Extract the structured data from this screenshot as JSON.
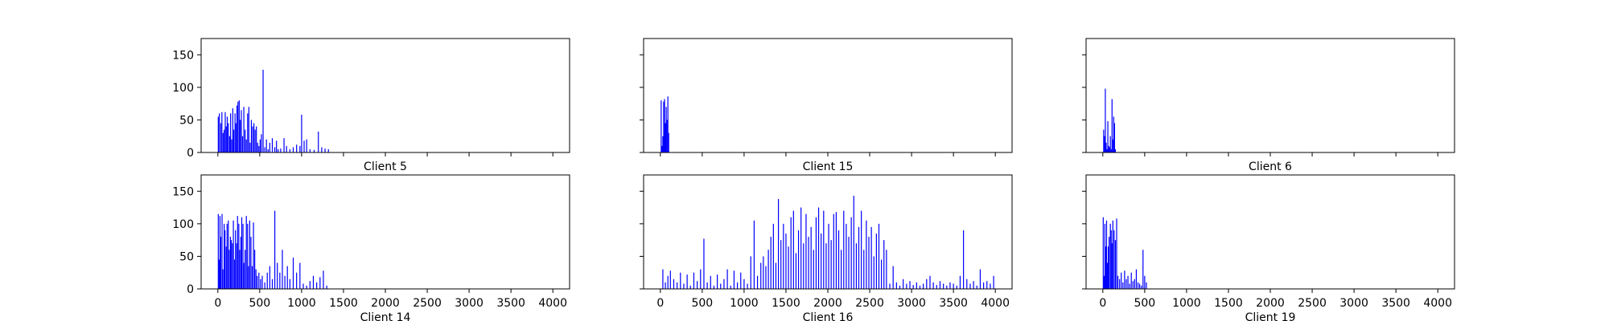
{
  "figure": {
    "background": "#ffffff",
    "bar_color": "#0000ff",
    "axis_color": "#000000"
  },
  "chart_data": [
    {
      "type": "bar",
      "title": "Client 5",
      "xlim": [
        -200,
        4200
      ],
      "ylim": [
        0,
        175
      ],
      "xticks": [
        0,
        500,
        1000,
        1500,
        2000,
        2500,
        3000,
        3500,
        4000
      ],
      "yticks": [
        0,
        50,
        100,
        150
      ],
      "xtick_labels_shown": false,
      "ytick_labels_shown": true,
      "x": [
        5,
        18,
        35,
        48,
        62,
        75,
        88,
        100,
        112,
        125,
        140,
        152,
        165,
        178,
        190,
        205,
        215,
        228,
        240,
        255,
        268,
        280,
        295,
        310,
        325,
        340,
        355,
        370,
        385,
        400,
        415,
        430,
        445,
        460,
        475,
        490,
        505,
        520,
        540,
        560,
        580,
        600,
        620,
        650,
        680,
        700,
        720,
        750,
        790,
        820,
        860,
        900,
        940,
        980,
        1000,
        1030,
        1060,
        1100,
        1150,
        1200,
        1240,
        1280,
        1320
      ],
      "values": [
        55,
        60,
        45,
        62,
        30,
        35,
        62,
        40,
        55,
        45,
        25,
        60,
        20,
        68,
        35,
        60,
        45,
        72,
        78,
        80,
        50,
        65,
        25,
        70,
        35,
        20,
        60,
        70,
        15,
        50,
        40,
        45,
        35,
        40,
        15,
        10,
        20,
        28,
        127,
        8,
        20,
        5,
        15,
        22,
        8,
        18,
        5,
        6,
        22,
        10,
        5,
        8,
        12,
        10,
        58,
        18,
        20,
        5,
        4,
        32,
        8,
        6,
        5
      ]
    },
    {
      "type": "bar",
      "title": "Client 15",
      "xlim": [
        -200,
        4200
      ],
      "ylim": [
        0,
        175
      ],
      "xticks": [
        0,
        500,
        1000,
        1500,
        2000,
        2500,
        3000,
        3500,
        4000
      ],
      "yticks": [
        0,
        50,
        100,
        150
      ],
      "xtick_labels_shown": false,
      "ytick_labels_shown": false,
      "x": [
        10,
        20,
        30,
        40,
        50,
        60,
        70,
        80,
        90,
        100
      ],
      "values": [
        80,
        10,
        25,
        78,
        82,
        45,
        70,
        50,
        86,
        30
      ]
    },
    {
      "type": "bar",
      "title": "Client 6",
      "xlim": [
        -200,
        4200
      ],
      "ylim": [
        0,
        175
      ],
      "xticks": [
        0,
        500,
        1000,
        1500,
        2000,
        2500,
        3000,
        3500,
        4000
      ],
      "yticks": [
        0,
        50,
        100,
        150
      ],
      "xtick_labels_shown": false,
      "ytick_labels_shown": false,
      "x": [
        10,
        20,
        30,
        40,
        50,
        60,
        70,
        80,
        90,
        100,
        110,
        120,
        130,
        140,
        150
      ],
      "values": [
        35,
        25,
        98,
        15,
        5,
        48,
        10,
        8,
        25,
        5,
        82,
        20,
        55,
        45,
        5
      ]
    },
    {
      "type": "bar",
      "title": "Client 14",
      "xlim": [
        -200,
        4200
      ],
      "ylim": [
        0,
        175
      ],
      "xticks": [
        0,
        500,
        1000,
        1500,
        2000,
        2500,
        3000,
        3500,
        4000
      ],
      "yticks": [
        0,
        50,
        100,
        150
      ],
      "xtick_labels_shown": true,
      "ytick_labels_shown": true,
      "x": [
        5,
        15,
        25,
        35,
        50,
        60,
        75,
        85,
        100,
        110,
        125,
        135,
        150,
        160,
        175,
        185,
        200,
        210,
        225,
        235,
        250,
        260,
        275,
        285,
        300,
        310,
        325,
        340,
        355,
        365,
        380,
        395,
        410,
        425,
        440,
        455,
        470,
        490,
        510,
        530,
        560,
        590,
        620,
        650,
        680,
        710,
        740,
        770,
        800,
        830,
        860,
        900,
        940,
        980,
        1020,
        1060,
        1100,
        1140,
        1180,
        1220,
        1260,
        1300
      ],
      "values": [
        115,
        45,
        112,
        80,
        115,
        30,
        100,
        90,
        65,
        100,
        105,
        60,
        80,
        75,
        70,
        105,
        45,
        90,
        70,
        112,
        100,
        60,
        80,
        110,
        100,
        40,
        60,
        112,
        100,
        35,
        105,
        80,
        35,
        102,
        60,
        30,
        20,
        25,
        15,
        20,
        10,
        25,
        35,
        15,
        120,
        40,
        25,
        60,
        20,
        35,
        15,
        48,
        25,
        40,
        8,
        5,
        12,
        20,
        10,
        18,
        28,
        5
      ]
    },
    {
      "type": "bar",
      "title": "Client 16",
      "xlim": [
        -200,
        4200
      ],
      "ylim": [
        0,
        175
      ],
      "xticks": [
        0,
        500,
        1000,
        1500,
        2000,
        2500,
        3000,
        3500,
        4000
      ],
      "yticks": [
        0,
        50,
        100,
        150
      ],
      "xtick_labels_shown": true,
      "ytick_labels_shown": false,
      "x": [
        30,
        60,
        90,
        120,
        160,
        200,
        240,
        280,
        320,
        360,
        400,
        440,
        480,
        520,
        560,
        600,
        640,
        680,
        720,
        760,
        800,
        840,
        880,
        920,
        960,
        1000,
        1040,
        1080,
        1120,
        1160,
        1200,
        1230,
        1260,
        1290,
        1320,
        1350,
        1380,
        1410,
        1440,
        1470,
        1500,
        1530,
        1560,
        1590,
        1620,
        1650,
        1680,
        1710,
        1740,
        1770,
        1800,
        1830,
        1860,
        1890,
        1920,
        1950,
        1980,
        2010,
        2040,
        2070,
        2100,
        2130,
        2160,
        2190,
        2220,
        2250,
        2280,
        2310,
        2340,
        2370,
        2400,
        2430,
        2460,
        2490,
        2520,
        2550,
        2580,
        2610,
        2640,
        2670,
        2700,
        2740,
        2780,
        2820,
        2860,
        2900,
        2940,
        2980,
        3020,
        3060,
        3100,
        3140,
        3180,
        3220,
        3260,
        3300,
        3340,
        3380,
        3420,
        3460,
        3500,
        3540,
        3580,
        3620,
        3660,
        3700,
        3740,
        3780,
        3820,
        3860,
        3900,
        3940,
        3980
      ],
      "values": [
        30,
        10,
        20,
        28,
        15,
        10,
        25,
        8,
        22,
        5,
        25,
        12,
        30,
        77,
        10,
        20,
        5,
        22,
        8,
        15,
        30,
        5,
        28,
        10,
        25,
        15,
        8,
        50,
        105,
        20,
        40,
        50,
        35,
        60,
        80,
        100,
        40,
        138,
        75,
        100,
        85,
        65,
        110,
        120,
        55,
        90,
        125,
        70,
        115,
        80,
        95,
        60,
        110,
        125,
        85,
        120,
        70,
        100,
        75,
        115,
        118,
        90,
        60,
        120,
        100,
        80,
        110,
        143,
        70,
        95,
        120,
        60,
        105,
        80,
        95,
        50,
        85,
        100,
        45,
        75,
        60,
        8,
        35,
        10,
        5,
        15,
        8,
        12,
        6,
        10,
        5,
        8,
        15,
        20,
        10,
        6,
        12,
        8,
        5,
        10,
        8,
        5,
        20,
        90,
        15,
        8,
        12,
        5,
        30,
        10,
        12,
        8,
        20
      ]
    },
    {
      "type": "bar",
      "title": "Client 19",
      "xlim": [
        -200,
        4200
      ],
      "ylim": [
        0,
        175
      ],
      "xticks": [
        0,
        500,
        1000,
        1500,
        2000,
        2500,
        3000,
        3500,
        4000
      ],
      "yticks": [
        0,
        50,
        100,
        150
      ],
      "xtick_labels_shown": true,
      "ytick_labels_shown": false,
      "x": [
        5,
        15,
        25,
        35,
        45,
        55,
        65,
        75,
        90,
        100,
        110,
        120,
        135,
        150,
        165,
        180,
        200,
        220,
        240,
        260,
        280,
        300,
        320,
        340,
        360,
        380,
        400,
        420,
        440,
        460,
        480,
        500,
        520
      ],
      "values": [
        110,
        20,
        100,
        65,
        105,
        40,
        65,
        80,
        100,
        90,
        70,
        105,
        90,
        75,
        108,
        20,
        15,
        25,
        10,
        28,
        15,
        20,
        8,
        25,
        12,
        15,
        30,
        10,
        8,
        5,
        60,
        20,
        10
      ]
    }
  ]
}
